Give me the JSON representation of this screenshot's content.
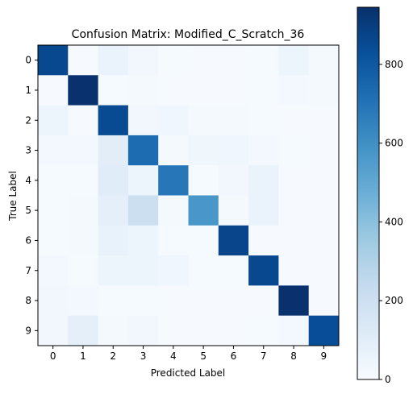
{
  "chart_data": {
    "type": "heatmap",
    "title": "Confusion Matrix: Modified_C_Scratch_36",
    "xlabel": "Predicted Label",
    "ylabel": "True Label",
    "x_categories": [
      "0",
      "1",
      "2",
      "3",
      "4",
      "5",
      "6",
      "7",
      "8",
      "9"
    ],
    "y_categories": [
      "0",
      "1",
      "2",
      "3",
      "4",
      "5",
      "6",
      "7",
      "8",
      "9"
    ],
    "values": [
      [
        860,
        5,
        60,
        30,
        10,
        5,
        5,
        10,
        45,
        15
      ],
      [
        5,
        940,
        10,
        15,
        5,
        5,
        5,
        10,
        20,
        15
      ],
      [
        50,
        5,
        850,
        30,
        35,
        15,
        15,
        10,
        5,
        5
      ],
      [
        20,
        20,
        100,
        730,
        15,
        40,
        35,
        25,
        10,
        5
      ],
      [
        10,
        10,
        110,
        45,
        690,
        10,
        30,
        60,
        5,
        5
      ],
      [
        10,
        15,
        90,
        210,
        15,
        570,
        15,
        60,
        5,
        5
      ],
      [
        10,
        15,
        70,
        45,
        10,
        10,
        870,
        5,
        5,
        5
      ],
      [
        25,
        10,
        45,
        45,
        35,
        10,
        10,
        860,
        5,
        5
      ],
      [
        30,
        20,
        10,
        10,
        5,
        5,
        5,
        5,
        940,
        5
      ],
      [
        30,
        90,
        15,
        30,
        5,
        5,
        5,
        10,
        20,
        840
      ]
    ],
    "colormap": "Blues",
    "vmin": 0,
    "vmax": 945,
    "colorbar_ticks": [
      "0",
      "200",
      "400",
      "600",
      "800"
    ],
    "colorbar_tick_values": [
      0,
      200,
      400,
      600,
      800
    ],
    "grid": false
  }
}
